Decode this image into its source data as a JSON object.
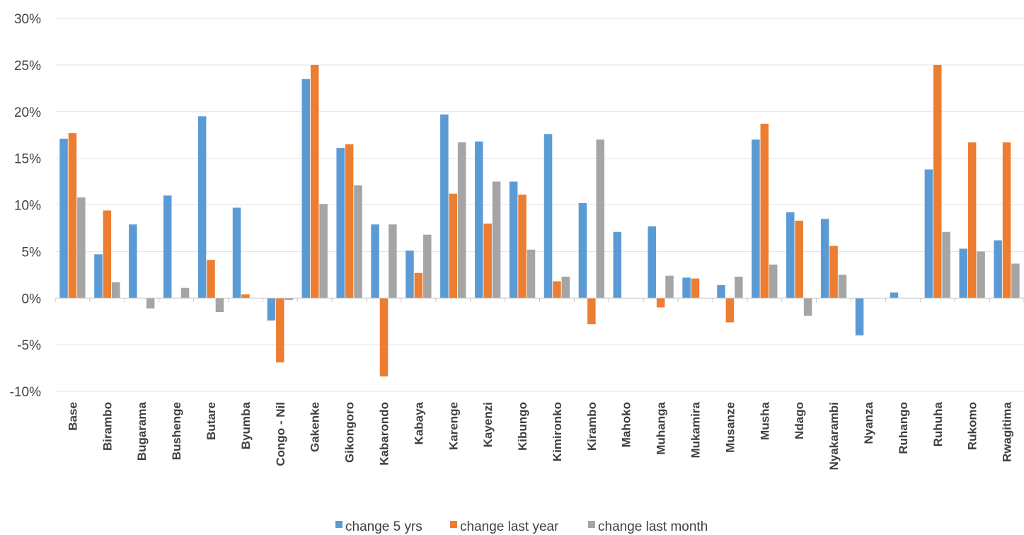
{
  "chart_data": {
    "type": "bar",
    "title": "",
    "xlabel": "",
    "ylabel": "",
    "ylim": [
      -10,
      30
    ],
    "ytick_step": 5,
    "ytick_labels": [
      "-10%",
      "-5%",
      "0%",
      "5%",
      "10%",
      "15%",
      "20%",
      "25%",
      "30%"
    ],
    "grid": true,
    "legend_position": "bottom",
    "colors": [
      "#5b9bd5",
      "#ed7d31",
      "#a5a5a5"
    ],
    "categories": [
      "Base",
      "Birambo",
      "Bugarama",
      "Bushenge",
      "Butare",
      "Byumba",
      "Congo - Nil",
      "Gakenke",
      "Gikongoro",
      "Kabarondo",
      "Kabaya",
      "Karenge",
      "Kayenzi",
      "Kibungo",
      "Kimironko",
      "Kirambo",
      "Mahoko",
      "Muhanga",
      "Mukamira",
      "Musanze",
      "Musha",
      "Ndago",
      "Nyakarambi",
      "Nyanza",
      "Ruhango",
      "Ruhuha",
      "Rukomo",
      "Rwagitima"
    ],
    "series": [
      {
        "name": "change 5 yrs",
        "values": [
          17.1,
          4.7,
          7.9,
          11.0,
          19.5,
          9.7,
          -2.4,
          23.5,
          16.1,
          7.9,
          5.1,
          19.7,
          16.8,
          12.5,
          17.6,
          10.2,
          7.1,
          7.7,
          2.2,
          1.4,
          17.0,
          9.2,
          8.5,
          -4.0,
          0.6,
          13.8,
          5.3,
          6.2
        ]
      },
      {
        "name": "change last year",
        "values": [
          17.7,
          9.4,
          0.0,
          0.0,
          4.1,
          0.4,
          -6.9,
          25.0,
          16.5,
          -8.4,
          2.7,
          11.2,
          8.0,
          11.1,
          1.8,
          -2.8,
          0.0,
          -1.0,
          2.1,
          -2.6,
          18.7,
          8.3,
          5.6,
          0.0,
          0.0,
          25.0,
          16.7,
          16.7
        ]
      },
      {
        "name": "change last month",
        "values": [
          10.8,
          1.7,
          -1.1,
          1.1,
          -1.5,
          0.0,
          -0.2,
          10.1,
          12.1,
          7.9,
          6.8,
          16.7,
          12.5,
          5.2,
          2.3,
          17.0,
          0.0,
          2.4,
          0.0,
          2.3,
          3.6,
          -1.9,
          2.5,
          0.0,
          0.0,
          7.1,
          5.0,
          3.7
        ]
      }
    ]
  }
}
